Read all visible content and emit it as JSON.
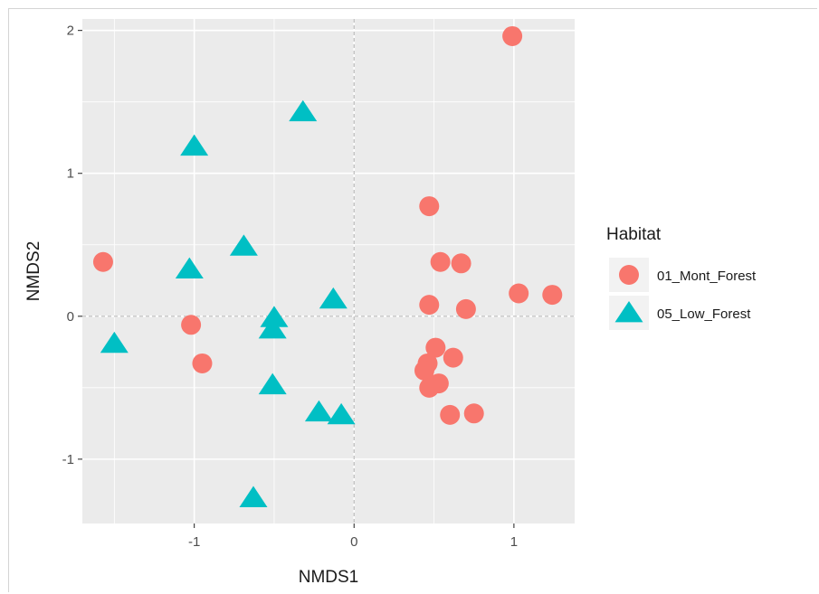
{
  "chart_data": {
    "type": "scatter",
    "title": "",
    "xlabel": "NMDS1",
    "ylabel": "NMDS2",
    "xlim": [
      -1.7,
      1.38
    ],
    "ylim": [
      -1.45,
      2.08
    ],
    "x_ticks": [
      -1,
      0,
      1
    ],
    "x_tick_labels": [
      "-1",
      "0",
      "1"
    ],
    "y_ticks": [
      -1,
      0,
      1,
      2
    ],
    "y_tick_labels": [
      "-1",
      "0",
      "1",
      "2"
    ],
    "grid": true,
    "reference_lines": {
      "x": 0,
      "y": 0,
      "style": "dashed"
    },
    "legend": {
      "title": "Habitat",
      "placement": "right"
    },
    "series": [
      {
        "name": "01_Mont_Forest",
        "shape": "circle",
        "color": "#F8766D",
        "points": [
          {
            "x": 0.99,
            "y": 1.96
          },
          {
            "x": -1.57,
            "y": 0.38
          },
          {
            "x": -1.02,
            "y": -0.06
          },
          {
            "x": -0.95,
            "y": -0.33
          },
          {
            "x": 0.47,
            "y": 0.77
          },
          {
            "x": 0.54,
            "y": 0.38
          },
          {
            "x": 0.67,
            "y": 0.37
          },
          {
            "x": 1.03,
            "y": 0.16
          },
          {
            "x": 1.24,
            "y": 0.15
          },
          {
            "x": 0.47,
            "y": 0.08
          },
          {
            "x": 0.7,
            "y": 0.05
          },
          {
            "x": 0.51,
            "y": -0.22
          },
          {
            "x": 0.62,
            "y": -0.29
          },
          {
            "x": 0.46,
            "y": -0.33
          },
          {
            "x": 0.44,
            "y": -0.38
          },
          {
            "x": 0.53,
            "y": -0.47
          },
          {
            "x": 0.47,
            "y": -0.5
          },
          {
            "x": 0.6,
            "y": -0.69
          },
          {
            "x": 0.75,
            "y": -0.68
          }
        ]
      },
      {
        "name": "05_Low_Forest",
        "shape": "triangle",
        "color": "#00BFC4",
        "points": [
          {
            "x": -0.32,
            "y": 1.43
          },
          {
            "x": -1.0,
            "y": 1.19
          },
          {
            "x": -0.69,
            "y": 0.49
          },
          {
            "x": -1.03,
            "y": 0.33
          },
          {
            "x": -0.13,
            "y": 0.12
          },
          {
            "x": -0.5,
            "y": -0.01
          },
          {
            "x": -0.51,
            "y": -0.09
          },
          {
            "x": -1.5,
            "y": -0.19
          },
          {
            "x": -0.51,
            "y": -0.48
          },
          {
            "x": -0.22,
            "y": -0.67
          },
          {
            "x": -0.08,
            "y": -0.69
          },
          {
            "x": -0.63,
            "y": -1.27
          }
        ]
      }
    ]
  }
}
